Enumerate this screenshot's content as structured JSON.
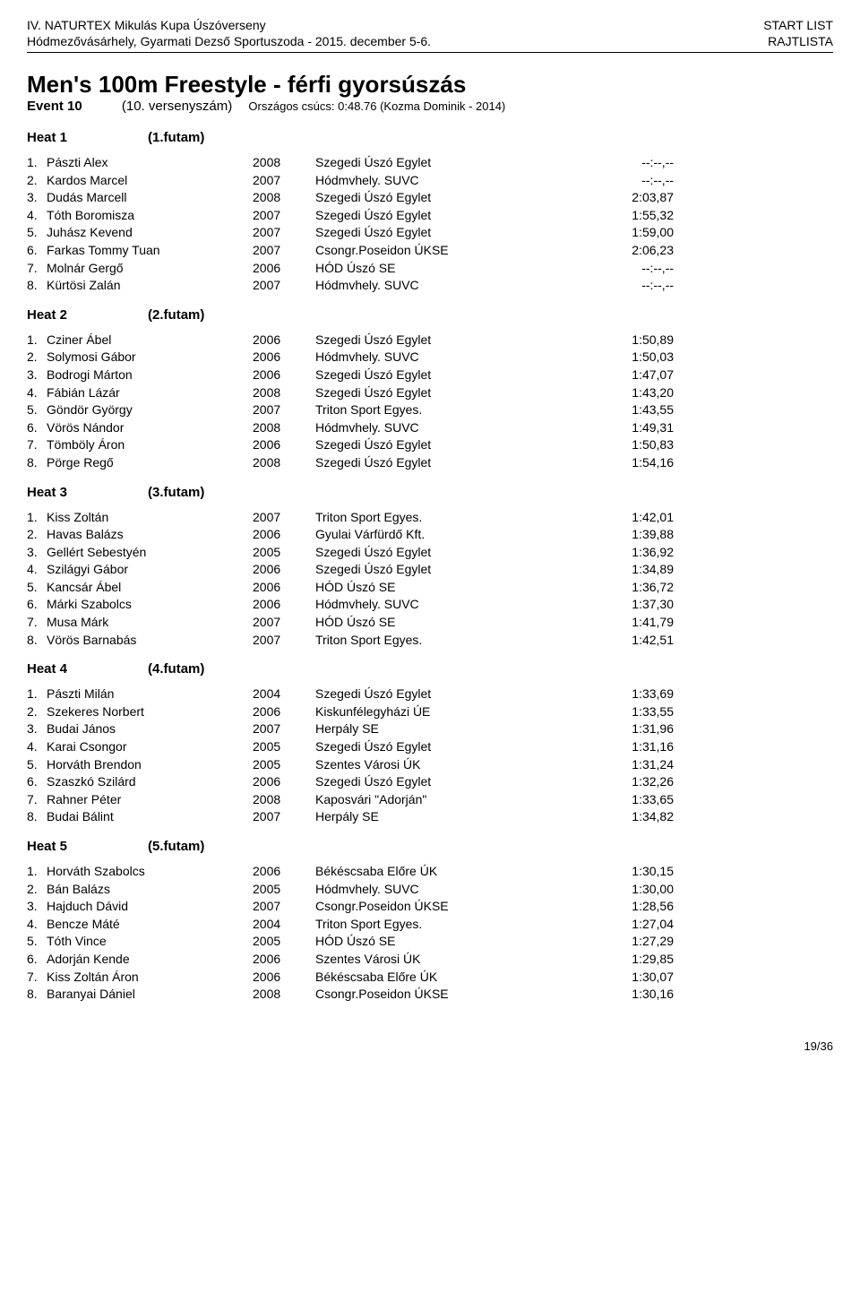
{
  "header": {
    "left1": "IV. NATURTEX Mikulás Kupa Úszóverseny",
    "right1": "START LIST",
    "left2": "Hódmezővásárhely, Gyarmati Dezső Sportuszoda - 2015. december 5-6.",
    "right2": "RAJTLISTA"
  },
  "title": "Men's 100m Freestyle - férfi gyorsúszás",
  "event": {
    "label": "Event 10",
    "sub": "(10. versenyszám)",
    "record": "Országos csúcs:  0:48.76 (Kozma Dominik - 2014)"
  },
  "heats": [
    {
      "title": "Heat 1",
      "sub": "(1.futam)",
      "rows": [
        {
          "lane": "1.",
          "name": "Pászti Alex",
          "year": "2008",
          "club": "Szegedi Úszó Egylet",
          "time": "--:--,--"
        },
        {
          "lane": "2.",
          "name": "Kardos Marcel",
          "year": "2007",
          "club": "Hódmvhely. SUVC",
          "time": "--:--,--"
        },
        {
          "lane": "3.",
          "name": "Dudás Marcell",
          "year": "2008",
          "club": "Szegedi Úszó Egylet",
          "time": "2:03,87"
        },
        {
          "lane": "4.",
          "name": "Tóth Boromisza",
          "year": "2007",
          "club": "Szegedi Úszó Egylet",
          "time": "1:55,32"
        },
        {
          "lane": "5.",
          "name": "Juhász Kevend",
          "year": "2007",
          "club": "Szegedi Úszó Egylet",
          "time": "1:59,00"
        },
        {
          "lane": "6.",
          "name": "Farkas Tommy Tuan",
          "year": "2007",
          "club": "Csongr.Poseidon ÚKSE",
          "time": "2:06,23"
        },
        {
          "lane": "7.",
          "name": "Molnár Gergő",
          "year": "2006",
          "club": "HÓD Úszó SE",
          "time": "--:--,--"
        },
        {
          "lane": "8.",
          "name": "Kürtösi Zalán",
          "year": "2007",
          "club": "Hódmvhely. SUVC",
          "time": "--:--,--"
        }
      ]
    },
    {
      "title": "Heat 2",
      "sub": "(2.futam)",
      "rows": [
        {
          "lane": "1.",
          "name": "Cziner Ábel",
          "year": "2006",
          "club": "Szegedi Úszó Egylet",
          "time": "1:50,89"
        },
        {
          "lane": "2.",
          "name": "Solymosi Gábor",
          "year": "2006",
          "club": "Hódmvhely. SUVC",
          "time": "1:50,03"
        },
        {
          "lane": "3.",
          "name": "Bodrogi Márton",
          "year": "2006",
          "club": "Szegedi Úszó Egylet",
          "time": "1:47,07"
        },
        {
          "lane": "4.",
          "name": "Fábián Lázár",
          "year": "2008",
          "club": "Szegedi Úszó Egylet",
          "time": "1:43,20"
        },
        {
          "lane": "5.",
          "name": "Göndör György",
          "year": "2007",
          "club": "Triton Sport Egyes.",
          "time": "1:43,55"
        },
        {
          "lane": "6.",
          "name": "Vörös Nándor",
          "year": "2008",
          "club": "Hódmvhely. SUVC",
          "time": "1:49,31"
        },
        {
          "lane": "7.",
          "name": "Tömböly Áron",
          "year": "2006",
          "club": "Szegedi Úszó Egylet",
          "time": "1:50,83"
        },
        {
          "lane": "8.",
          "name": "Pörge Regő",
          "year": "2008",
          "club": "Szegedi Úszó Egylet",
          "time": "1:54,16"
        }
      ]
    },
    {
      "title": "Heat 3",
      "sub": "(3.futam)",
      "rows": [
        {
          "lane": "1.",
          "name": "Kiss Zoltán",
          "year": "2007",
          "club": "Triton Sport Egyes.",
          "time": "1:42,01"
        },
        {
          "lane": "2.",
          "name": "Havas Balázs",
          "year": "2006",
          "club": "Gyulai Várfürdő Kft.",
          "time": "1:39,88"
        },
        {
          "lane": "3.",
          "name": "Gellért Sebestyén",
          "year": "2005",
          "club": "Szegedi Úszó Egylet",
          "time": "1:36,92"
        },
        {
          "lane": "4.",
          "name": "Szilágyi Gábor",
          "year": "2006",
          "club": "Szegedi Úszó Egylet",
          "time": "1:34,89"
        },
        {
          "lane": "5.",
          "name": "Kancsár Ábel",
          "year": "2006",
          "club": "HÓD Úszó SE",
          "time": "1:36,72"
        },
        {
          "lane": "6.",
          "name": "Márki Szabolcs",
          "year": "2006",
          "club": "Hódmvhely. SUVC",
          "time": "1:37,30"
        },
        {
          "lane": "7.",
          "name": "Musa Márk",
          "year": "2007",
          "club": "HÓD Úszó SE",
          "time": "1:41,79"
        },
        {
          "lane": "8.",
          "name": "Vörös Barnabás",
          "year": "2007",
          "club": "Triton Sport Egyes.",
          "time": "1:42,51"
        }
      ]
    },
    {
      "title": "Heat 4",
      "sub": "(4.futam)",
      "rows": [
        {
          "lane": "1.",
          "name": "Pászti Milán",
          "year": "2004",
          "club": "Szegedi Úszó Egylet",
          "time": "1:33,69"
        },
        {
          "lane": "2.",
          "name": "Szekeres Norbert",
          "year": "2006",
          "club": "Kiskunfélegyházi ÚE",
          "time": "1:33,55"
        },
        {
          "lane": "3.",
          "name": "Budai János",
          "year": "2007",
          "club": "Herpály SE",
          "time": "1:31,96"
        },
        {
          "lane": "4.",
          "name": "Karai Csongor",
          "year": "2005",
          "club": "Szegedi Úszó Egylet",
          "time": "1:31,16"
        },
        {
          "lane": "5.",
          "name": "Horváth Brendon",
          "year": "2005",
          "club": "Szentes Városi ÚK",
          "time": "1:31,24"
        },
        {
          "lane": "6.",
          "name": "Szaszkó Szilárd",
          "year": "2006",
          "club": "Szegedi Úszó Egylet",
          "time": "1:32,26"
        },
        {
          "lane": "7.",
          "name": "Rahner Péter",
          "year": "2008",
          "club": "Kaposvári \"Adorján\"",
          "time": "1:33,65"
        },
        {
          "lane": "8.",
          "name": "Budai Bálint",
          "year": "2007",
          "club": "Herpály SE",
          "time": "1:34,82"
        }
      ]
    },
    {
      "title": "Heat 5",
      "sub": "(5.futam)",
      "rows": [
        {
          "lane": "1.",
          "name": "Horváth Szabolcs",
          "year": "2006",
          "club": "Békéscsaba Előre ÚK",
          "time": "1:30,15"
        },
        {
          "lane": "2.",
          "name": "Bán Balázs",
          "year": "2005",
          "club": "Hódmvhely. SUVC",
          "time": "1:30,00"
        },
        {
          "lane": "3.",
          "name": "Hajduch Dávid",
          "year": "2007",
          "club": "Csongr.Poseidon ÚKSE",
          "time": "1:28,56"
        },
        {
          "lane": "4.",
          "name": "Bencze Máté",
          "year": "2004",
          "club": "Triton Sport Egyes.",
          "time": "1:27,04"
        },
        {
          "lane": "5.",
          "name": "Tóth Vince",
          "year": "2005",
          "club": "HÓD Úszó SE",
          "time": "1:27,29"
        },
        {
          "lane": "6.",
          "name": "Adorján Kende",
          "year": "2006",
          "club": "Szentes Városi ÚK",
          "time": "1:29,85"
        },
        {
          "lane": "7.",
          "name": "Kiss Zoltán Áron",
          "year": "2006",
          "club": "Békéscsaba Előre ÚK",
          "time": "1:30,07"
        },
        {
          "lane": "8.",
          "name": "Baranyai Dániel",
          "year": "2008",
          "club": "Csongr.Poseidon ÚKSE",
          "time": "1:30,16"
        }
      ]
    }
  ],
  "footer": "19/36"
}
